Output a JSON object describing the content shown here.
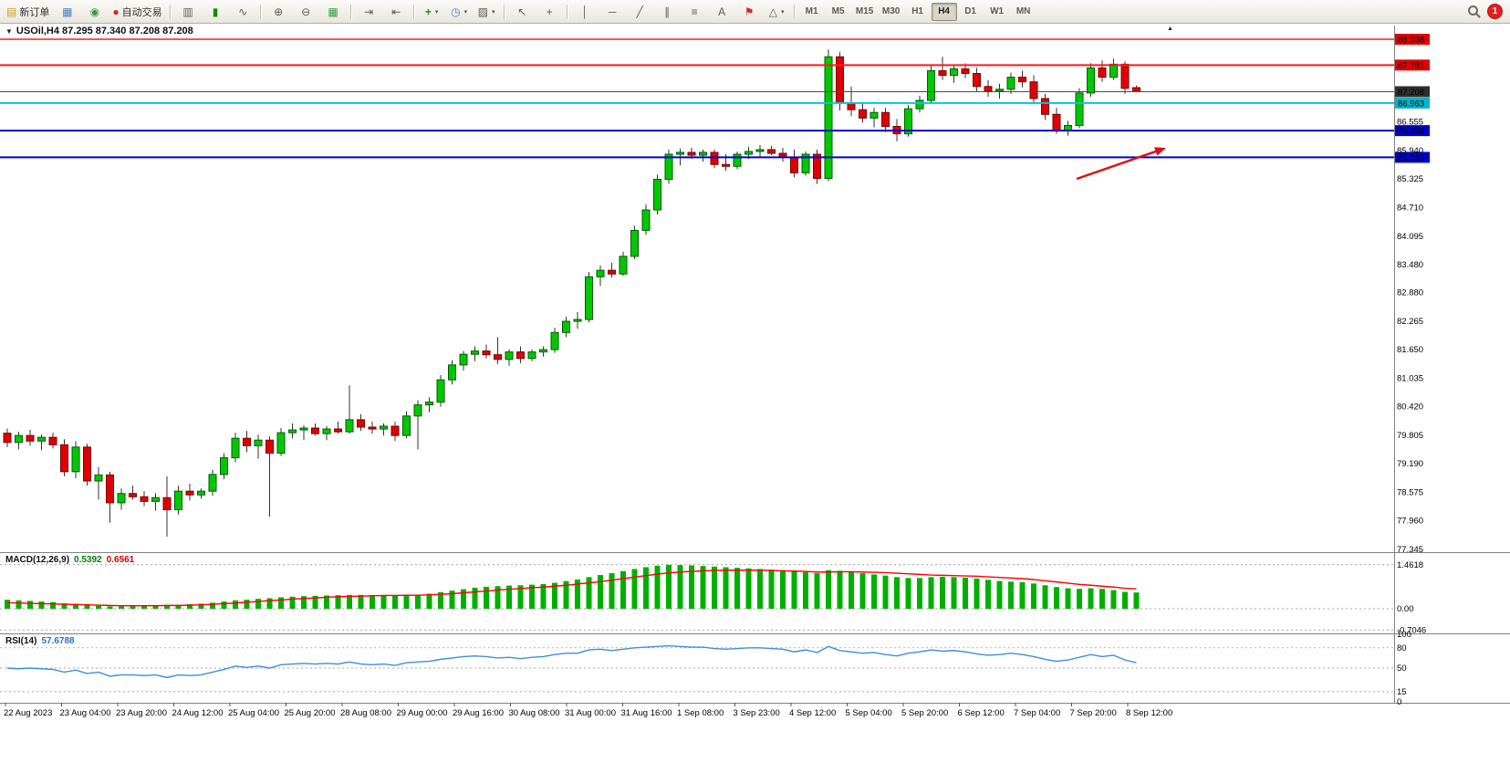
{
  "toolbar": {
    "new_order_label": "新订单",
    "auto_trading_label": "自动交易",
    "timeframes": [
      "M1",
      "M5",
      "M15",
      "M30",
      "H1",
      "H4",
      "D1",
      "W1",
      "MN"
    ],
    "active_timeframe": "H4",
    "notification_count": "1"
  },
  "icons": {
    "new_order": "▤",
    "chart_window": "▦",
    "profiles": "◉",
    "auto_trading": "●",
    "bar_chart": "▥",
    "candlestick": "▮",
    "line_chart": "∿",
    "zoom_in": "⊕",
    "zoom_out": "⊖",
    "tile_windows": "▦",
    "auto_scroll": "⇥",
    "chart_shift": "⇤",
    "indicators": "+",
    "periods": "◷",
    "templates": "▨",
    "cursor": "↖",
    "crosshair": "+",
    "vertical_line": "│",
    "horizontal_line": "─",
    "trendline": "╱",
    "channel": "∥",
    "fibonacci": "≡",
    "text": "A",
    "text_label": "⚑",
    "shapes": "△",
    "dropdown": "▾",
    "chart_dropdown": "▼",
    "shift_marker": "▲"
  },
  "chart": {
    "title": "USOil,H4 87.295 87.340 87.208 87.208",
    "symbol": "USOil",
    "period": "H4",
    "open": "87.295",
    "high": "87.340",
    "low": "87.208",
    "close": "87.208"
  },
  "chart_data": {
    "type": "candlestick+indicators",
    "symbol": "USOil",
    "period": "H4",
    "price_range_visible": [
      77.345,
      88.338
    ],
    "candles": [
      [
        79.85,
        79.95,
        79.55,
        79.65
      ],
      [
        79.65,
        79.88,
        79.5,
        79.8
      ],
      [
        79.8,
        79.92,
        79.58,
        79.68
      ],
      [
        79.68,
        79.82,
        79.48,
        79.76
      ],
      [
        79.76,
        79.86,
        79.52,
        79.6
      ],
      [
        79.6,
        79.72,
        78.92,
        79.02
      ],
      [
        79.02,
        79.68,
        78.88,
        79.55
      ],
      [
        79.55,
        79.62,
        78.72,
        78.82
      ],
      [
        78.82,
        79.12,
        78.42,
        78.95
      ],
      [
        78.95,
        79.02,
        77.92,
        78.35
      ],
      [
        78.35,
        78.66,
        78.2,
        78.55
      ],
      [
        78.55,
        78.72,
        78.42,
        78.48
      ],
      [
        78.48,
        78.6,
        78.28,
        78.38
      ],
      [
        78.38,
        78.56,
        78.18,
        78.46
      ],
      [
        78.46,
        78.92,
        77.62,
        78.2
      ],
      [
        78.2,
        78.72,
        78.1,
        78.6
      ],
      [
        78.6,
        78.76,
        78.4,
        78.52
      ],
      [
        78.52,
        78.66,
        78.44,
        78.6
      ],
      [
        78.6,
        79.06,
        78.5,
        78.96
      ],
      [
        78.96,
        79.42,
        78.86,
        79.32
      ],
      [
        79.32,
        79.86,
        79.22,
        79.74
      ],
      [
        79.74,
        79.9,
        79.44,
        79.58
      ],
      [
        79.58,
        79.82,
        79.3,
        79.7
      ],
      [
        79.7,
        79.78,
        78.05,
        79.42
      ],
      [
        79.42,
        79.96,
        79.36,
        79.86
      ],
      [
        79.86,
        80.06,
        79.74,
        79.92
      ],
      [
        79.92,
        80.02,
        79.7,
        79.96
      ],
      [
        79.96,
        80.06,
        79.8,
        79.84
      ],
      [
        79.84,
        80.0,
        79.7,
        79.94
      ],
      [
        79.94,
        80.1,
        79.84,
        79.88
      ],
      [
        79.88,
        80.88,
        79.84,
        80.14
      ],
      [
        80.14,
        80.26,
        79.9,
        79.98
      ],
      [
        79.98,
        80.1,
        79.84,
        79.94
      ],
      [
        79.94,
        80.06,
        79.8,
        80.0
      ],
      [
        80.0,
        80.1,
        79.68,
        79.8
      ],
      [
        79.8,
        80.32,
        79.74,
        80.22
      ],
      [
        80.22,
        80.56,
        79.5,
        80.46
      ],
      [
        80.46,
        80.62,
        80.3,
        80.52
      ],
      [
        80.52,
        81.1,
        80.42,
        81.0
      ],
      [
        81.0,
        81.42,
        80.9,
        81.32
      ],
      [
        81.32,
        81.62,
        81.2,
        81.55
      ],
      [
        81.55,
        81.72,
        81.4,
        81.62
      ],
      [
        81.62,
        81.76,
        81.46,
        81.54
      ],
      [
        81.54,
        81.92,
        81.34,
        81.44
      ],
      [
        81.44,
        81.66,
        81.3,
        81.6
      ],
      [
        81.6,
        81.72,
        81.36,
        81.46
      ],
      [
        81.46,
        81.66,
        81.4,
        81.6
      ],
      [
        81.6,
        81.72,
        81.5,
        81.65
      ],
      [
        81.65,
        82.12,
        81.58,
        82.02
      ],
      [
        82.02,
        82.36,
        81.92,
        82.26
      ],
      [
        82.26,
        82.46,
        82.1,
        82.3
      ],
      [
        82.3,
        83.32,
        82.24,
        83.22
      ],
      [
        83.22,
        83.46,
        83.02,
        83.36
      ],
      [
        83.36,
        83.52,
        83.2,
        83.28
      ],
      [
        83.28,
        83.76,
        83.24,
        83.66
      ],
      [
        83.66,
        84.32,
        83.6,
        84.22
      ],
      [
        84.22,
        84.78,
        84.12,
        84.66
      ],
      [
        84.66,
        85.42,
        84.56,
        85.32
      ],
      [
        85.32,
        85.96,
        85.22,
        85.86
      ],
      [
        85.86,
        85.98,
        85.62,
        85.9
      ],
      [
        85.9,
        86.0,
        85.76,
        85.84
      ],
      [
        85.84,
        85.96,
        85.7,
        85.9
      ],
      [
        85.9,
        85.96,
        85.56,
        85.64
      ],
      [
        85.64,
        85.86,
        85.5,
        85.6
      ],
      [
        85.6,
        85.92,
        85.54,
        85.86
      ],
      [
        85.86,
        86.02,
        85.76,
        85.92
      ],
      [
        85.92,
        86.06,
        85.8,
        85.96
      ],
      [
        85.96,
        86.04,
        85.84,
        85.88
      ],
      [
        85.88,
        86.0,
        85.7,
        85.8
      ],
      [
        85.8,
        85.96,
        85.36,
        85.46
      ],
      [
        85.46,
        85.92,
        85.4,
        85.86
      ],
      [
        85.86,
        85.96,
        85.22,
        85.34
      ],
      [
        85.34,
        88.12,
        85.28,
        87.96
      ],
      [
        87.96,
        88.06,
        86.8,
        86.96
      ],
      [
        86.96,
        87.32,
        86.68,
        86.82
      ],
      [
        86.82,
        86.96,
        86.54,
        86.64
      ],
      [
        86.64,
        86.86,
        86.44,
        86.76
      ],
      [
        86.76,
        86.86,
        86.34,
        86.46
      ],
      [
        86.46,
        86.62,
        86.14,
        86.3
      ],
      [
        86.3,
        86.92,
        86.24,
        86.84
      ],
      [
        86.84,
        87.12,
        86.76,
        87.02
      ],
      [
        87.02,
        87.76,
        86.96,
        87.66
      ],
      [
        87.66,
        87.96,
        87.46,
        87.56
      ],
      [
        87.56,
        87.76,
        87.4,
        87.7
      ],
      [
        87.7,
        87.82,
        87.5,
        87.6
      ],
      [
        87.6,
        87.72,
        87.2,
        87.32
      ],
      [
        87.32,
        87.46,
        87.1,
        87.22
      ],
      [
        87.22,
        87.38,
        87.06,
        87.26
      ],
      [
        87.26,
        87.62,
        87.16,
        87.52
      ],
      [
        87.52,
        87.66,
        87.3,
        87.42
      ],
      [
        87.42,
        87.56,
        86.94,
        87.06
      ],
      [
        87.06,
        87.16,
        86.6,
        86.72
      ],
      [
        86.72,
        86.86,
        86.3,
        86.38
      ],
      [
        86.38,
        86.58,
        86.26,
        86.48
      ],
      [
        86.48,
        87.28,
        86.42,
        87.18
      ],
      [
        87.18,
        87.82,
        87.1,
        87.72
      ],
      [
        87.72,
        87.88,
        87.42,
        87.52
      ],
      [
        87.52,
        87.92,
        87.46,
        87.8
      ],
      [
        87.8,
        87.86,
        87.16,
        87.28
      ],
      [
        87.295,
        87.34,
        87.208,
        87.208
      ]
    ],
    "time_labels": [
      "22 Aug 2023",
      "23 Aug 04:00",
      "23 Aug 20:00",
      "24 Aug 12:00",
      "25 Aug 04:00",
      "25 Aug 20:00",
      "28 Aug 08:00",
      "29 Aug 00:00",
      "29 Aug 16:00",
      "30 Aug 08:00",
      "31 Aug 00:00",
      "31 Aug 16:00",
      "1 Sep 08:00",
      "3 Sep 23:00",
      "4 Sep 12:00",
      "5 Sep 04:00",
      "5 Sep 20:00",
      "6 Sep 12:00",
      "7 Sep 04:00",
      "7 Sep 20:00",
      "8 Sep 12:00"
    ],
    "price_axis": {
      "plain_labels": [
        "86.555",
        "85.940",
        "85.325",
        "84.710",
        "84.095",
        "83.480",
        "82.880",
        "82.265",
        "81.650",
        "81.035",
        "80.420",
        "79.805",
        "79.190",
        "78.575",
        "77.960",
        "77.345"
      ]
    },
    "levels": [
      {
        "price": 88.338,
        "label": "88.338",
        "line_color": "#ff1a1a",
        "badge_color": "#e00000",
        "width": 1.5
      },
      {
        "price": 87.781,
        "label": "87.781",
        "line_color": "#ff1a1a",
        "badge_color": "#e00000",
        "width": 2
      },
      {
        "price": 87.208,
        "label": "87.208",
        "line_color": "#4a4a4a",
        "badge_color": "#2f2f2f",
        "width": 1,
        "type": "current-price"
      },
      {
        "price": 86.963,
        "label": "86.963",
        "line_color": "#00c8dc",
        "badge_color": "#00b4cc",
        "width": 2
      },
      {
        "price": 86.369,
        "label": "86.369",
        "line_color": "#0000cc",
        "badge_color": "#0000cc",
        "width": 2
      },
      {
        "price": 85.793,
        "label": "85.793",
        "line_color": "#0000cc",
        "badge_color": "#0000cc",
        "width": 2
      }
    ],
    "macd": {
      "name": "MACD(12,26,9)",
      "main_label": "0.5392",
      "signal_label": "0.6561",
      "main_value": 0.5392,
      "signal_value": 0.6561,
      "scale": [
        {
          "label": "1.4618",
          "value": 1.4618
        },
        {
          "label": "0.00",
          "value": 0
        },
        {
          "label": "-0.7046",
          "value": -0.7046
        }
      ],
      "histogram": [
        0.3,
        0.28,
        0.26,
        0.24,
        0.22,
        0.18,
        0.16,
        0.12,
        0.1,
        0.08,
        0.08,
        0.09,
        0.1,
        0.11,
        0.12,
        0.13,
        0.15,
        0.17,
        0.2,
        0.24,
        0.28,
        0.3,
        0.33,
        0.35,
        0.38,
        0.4,
        0.42,
        0.43,
        0.44,
        0.45,
        0.46,
        0.46,
        0.45,
        0.45,
        0.44,
        0.45,
        0.47,
        0.5,
        0.55,
        0.6,
        0.65,
        0.7,
        0.73,
        0.75,
        0.77,
        0.78,
        0.8,
        0.82,
        0.86,
        0.92,
        0.97,
        1.05,
        1.12,
        1.18,
        1.25,
        1.32,
        1.38,
        1.43,
        1.46,
        1.45,
        1.44,
        1.42,
        1.4,
        1.38,
        1.36,
        1.34,
        1.32,
        1.3,
        1.28,
        1.24,
        1.22,
        1.18,
        1.28,
        1.26,
        1.22,
        1.18,
        1.14,
        1.1,
        1.05,
        1.02,
        1.02,
        1.05,
        1.06,
        1.05,
        1.03,
        1.0,
        0.96,
        0.92,
        0.9,
        0.88,
        0.84,
        0.78,
        0.72,
        0.68,
        0.66,
        0.68,
        0.66,
        0.62,
        0.56,
        0.54
      ],
      "signal": [
        0.2,
        0.19,
        0.18,
        0.17,
        0.16,
        0.15,
        0.14,
        0.13,
        0.12,
        0.11,
        0.1,
        0.1,
        0.1,
        0.1,
        0.11,
        0.11,
        0.12,
        0.13,
        0.15,
        0.17,
        0.19,
        0.22,
        0.24,
        0.27,
        0.29,
        0.32,
        0.34,
        0.36,
        0.38,
        0.4,
        0.41,
        0.42,
        0.43,
        0.44,
        0.44,
        0.45,
        0.45,
        0.46,
        0.48,
        0.5,
        0.53,
        0.56,
        0.59,
        0.62,
        0.65,
        0.67,
        0.7,
        0.72,
        0.75,
        0.78,
        0.82,
        0.86,
        0.9,
        0.95,
        1.0,
        1.05,
        1.1,
        1.15,
        1.19,
        1.22,
        1.24,
        1.26,
        1.27,
        1.28,
        1.28,
        1.28,
        1.28,
        1.27,
        1.26,
        1.25,
        1.24,
        1.22,
        1.22,
        1.23,
        1.23,
        1.22,
        1.21,
        1.2,
        1.18,
        1.16,
        1.14,
        1.12,
        1.11,
        1.1,
        1.09,
        1.08,
        1.06,
        1.04,
        1.02,
        1.0,
        0.97,
        0.93,
        0.89,
        0.85,
        0.81,
        0.78,
        0.75,
        0.72,
        0.68,
        0.66
      ],
      "colors": {
        "histogram": "#00b000",
        "signal": "#ff0000"
      }
    },
    "rsi": {
      "name": "RSI(14)",
      "value_label": "57.6788",
      "value": 57.6788,
      "scale": [
        {
          "label": "100",
          "value": 100,
          "grid": false
        },
        {
          "label": "80",
          "value": 80,
          "grid": true
        },
        {
          "label": "50",
          "value": 50,
          "grid": true
        },
        {
          "label": "15",
          "value": 15,
          "grid": true
        },
        {
          "label": "0",
          "value": 0,
          "grid": false
        }
      ],
      "series": [
        50,
        49,
        50,
        49,
        48,
        44,
        47,
        42,
        44,
        38,
        40,
        40,
        39,
        40,
        36,
        40,
        39,
        40,
        44,
        48,
        53,
        51,
        53,
        50,
        55,
        56,
        57,
        56,
        57,
        56,
        59,
        56,
        55,
        56,
        54,
        58,
        59,
        60,
        63,
        65,
        67,
        68,
        67,
        65,
        66,
        64,
        66,
        67,
        70,
        72,
        72,
        77,
        78,
        76,
        78,
        80,
        81,
        82,
        83,
        82,
        81,
        81,
        79,
        78,
        79,
        80,
        80,
        79,
        78,
        74,
        77,
        73,
        82,
        76,
        74,
        72,
        73,
        70,
        68,
        72,
        74,
        77,
        75,
        76,
        74,
        71,
        69,
        70,
        72,
        70,
        67,
        63,
        60,
        62,
        66,
        70,
        67,
        69,
        62,
        58
      ],
      "color": "#3e8ede"
    },
    "annotations": [
      {
        "type": "arrow",
        "from": [
          1180,
          196
        ],
        "to": [
          1278,
          162
        ],
        "color": "#e01010"
      }
    ],
    "colors": {
      "bull_fill": "#00c800",
      "bull_border": "#005a00",
      "bear_fill": "#e00000",
      "bear_border": "#7a0000",
      "grid_dashed": "#8a8a8a",
      "separator": "#808080",
      "axis_text": "#000000"
    }
  }
}
